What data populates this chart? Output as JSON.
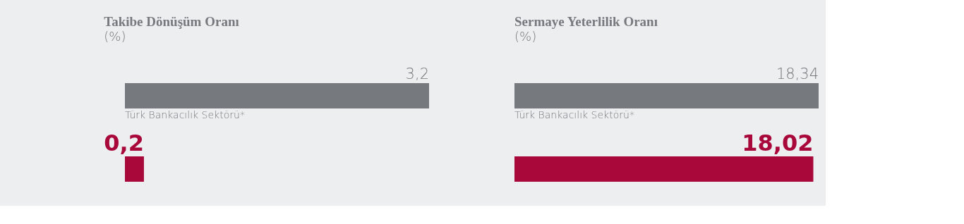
{
  "chart_data": [
    {
      "type": "bar",
      "orientation": "horizontal",
      "title": "Takibe Dönüşüm Oranı",
      "subtitle": "(%)",
      "categories": [
        "Türk Bankacılık Sektörü*",
        null
      ],
      "values": [
        3.2,
        0.2
      ],
      "colors": [
        "#76797e",
        "#a8083a"
      ],
      "value_labels": [
        "3,2",
        "0,2"
      ]
    },
    {
      "type": "bar",
      "orientation": "horizontal",
      "title": "Sermaye Yeterlilik Oranı",
      "subtitle": "(%)",
      "categories": [
        "Türk Bankacılık Sektörü*",
        null
      ],
      "values": [
        18.34,
        18.02
      ],
      "colors": [
        "#76797e",
        "#a8083a"
      ],
      "value_labels": [
        "18,34",
        "18,02"
      ]
    }
  ]
}
